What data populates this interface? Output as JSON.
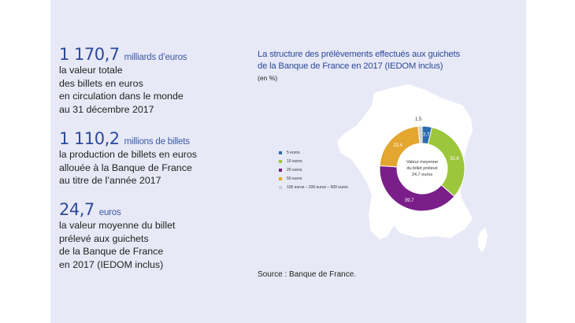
{
  "stats": [
    {
      "value": "1 170,7",
      "unit": "milliards d’euros",
      "lines": [
        "la valeur totale",
        "des billets en euros",
        "en circulation dans le monde",
        "au 31 décembre 2017"
      ]
    },
    {
      "value": "1 110,2",
      "unit": "millions de billets",
      "lines": [
        "la production de billets en euros",
        "allouée à la Banque de France",
        "au titre de l’année 2017"
      ]
    },
    {
      "value": "24,7",
      "unit": "euros",
      "lines": [
        "la valeur moyenne du billet",
        "prélevé aux guichets",
        "de la Banque de France",
        "en 2017 (IEDOM inclus)"
      ]
    }
  ],
  "chart_data": {
    "type": "pie",
    "title": [
      "La structure des prélèvements effectués aux guichets",
      "de la Banque de France en 2017 (IEDOM inclus)"
    ],
    "unit": "(en %)",
    "center_label": [
      "Valeur moyenne",
      "du billet prélevé",
      "24,7 euros"
    ],
    "slices": [
      {
        "label": "5 euros",
        "value": 3.7,
        "value_label": "3,7",
        "color": "#2a6cb0"
      },
      {
        "label": "10 euros",
        "value": 32.6,
        "value_label": "32,6",
        "color": "#9cc63c"
      },
      {
        "label": "20 euros",
        "value": 39.7,
        "value_label": "39,7",
        "color": "#7a1f8a"
      },
      {
        "label": "50 euros",
        "value": 22.4,
        "value_label": "22,4",
        "color": "#e3a62e"
      },
      {
        "label": "100 euros – 200 euros – 500 euros",
        "value": 1.5,
        "value_label": "1,5",
        "color": "#cfcfcf"
      }
    ]
  },
  "source": "Source : Banque de France."
}
